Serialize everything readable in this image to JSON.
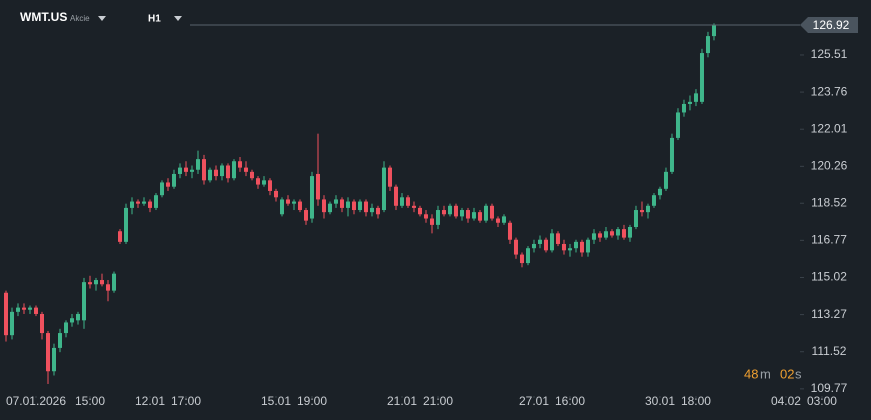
{
  "header": {
    "symbol": "WMT.US",
    "instrument_type": "Akcie",
    "interval": "H1"
  },
  "countdown": {
    "minutes": "48",
    "minutes_unit": "m",
    "seconds": "02",
    "seconds_unit": "s"
  },
  "chart_data": {
    "type": "candlestick",
    "up_color": "#3fb68b",
    "down_color": "#f0515e",
    "last_price": 126.92,
    "ylim": [
      109.48,
      127.63
    ],
    "yticks": [
      109.77,
      111.52,
      113.27,
      115.02,
      116.77,
      118.52,
      120.26,
      122.01,
      123.76,
      125.51
    ],
    "xlim": [
      -1,
      144.17
    ],
    "xticks": [
      {
        "value": 5,
        "label": "07.01.2026"
      },
      {
        "value": 14,
        "label": "15:00"
      },
      {
        "value": 24,
        "label": "12.01"
      },
      {
        "value": 30,
        "label": "17:00"
      },
      {
        "value": 45,
        "label": "15.01"
      },
      {
        "value": 51,
        "label": "19:00"
      },
      {
        "value": 66,
        "label": "21.01"
      },
      {
        "value": 72,
        "label": "21:00"
      },
      {
        "value": 88,
        "label": "27.01"
      },
      {
        "value": 94,
        "label": "16:00"
      },
      {
        "value": 109,
        "label": "30.01"
      },
      {
        "value": 115,
        "label": "18:00"
      },
      {
        "value": 130,
        "label": "04.02"
      },
      {
        "value": 136,
        "label": "03:00"
      }
    ],
    "ohlc": [
      [
        114.3,
        114.4,
        112.0,
        112.3
      ],
      [
        112.3,
        113.6,
        112.1,
        113.4
      ],
      [
        113.4,
        113.8,
        113.2,
        113.6
      ],
      [
        113.6,
        113.8,
        113.3,
        113.5
      ],
      [
        113.5,
        113.7,
        113.3,
        113.6
      ],
      [
        113.6,
        113.7,
        113.2,
        113.3
      ],
      [
        113.3,
        113.4,
        112.1,
        112.4
      ],
      [
        112.4,
        112.5,
        110.0,
        110.6
      ],
      [
        110.6,
        111.9,
        110.4,
        111.7
      ],
      [
        111.7,
        112.6,
        111.5,
        112.4
      ],
      [
        112.4,
        113.0,
        112.2,
        112.9
      ],
      [
        112.9,
        113.3,
        112.7,
        113.1
      ],
      [
        113.0,
        113.4,
        112.8,
        113.3
      ],
      [
        113.0,
        115.0,
        112.6,
        114.8
      ],
      [
        114.8,
        115.1,
        114.5,
        114.7
      ],
      [
        114.7,
        115.0,
        114.4,
        114.9
      ],
      [
        114.9,
        115.2,
        114.6,
        114.7
      ],
      [
        114.7,
        114.9,
        113.9,
        114.4
      ],
      [
        114.4,
        115.3,
        114.3,
        115.2
      ],
      [
        117.2,
        117.3,
        116.6,
        116.7
      ],
      [
        116.7,
        118.5,
        116.6,
        118.3
      ],
      [
        118.3,
        118.8,
        118.0,
        118.6
      ],
      [
        118.6,
        118.7,
        118.3,
        118.5
      ],
      [
        118.5,
        118.8,
        118.4,
        118.6
      ],
      [
        118.6,
        118.7,
        118.1,
        118.3
      ],
      [
        118.3,
        119.0,
        118.2,
        118.9
      ],
      [
        118.9,
        119.6,
        118.8,
        119.5
      ],
      [
        119.5,
        119.7,
        119.1,
        119.3
      ],
      [
        119.3,
        120.1,
        119.2,
        119.9
      ],
      [
        119.9,
        120.4,
        119.7,
        120.2
      ],
      [
        120.2,
        120.5,
        119.8,
        120.0
      ],
      [
        120.0,
        120.3,
        119.7,
        120.1
      ],
      [
        120.1,
        121.0,
        119.9,
        120.6
      ],
      [
        120.6,
        120.8,
        119.4,
        119.6
      ],
      [
        119.6,
        120.2,
        119.5,
        120.1
      ],
      [
        120.1,
        120.3,
        119.6,
        119.8
      ],
      [
        119.8,
        120.4,
        119.6,
        120.3
      ],
      [
        120.3,
        120.4,
        119.5,
        119.7
      ],
      [
        119.7,
        120.6,
        119.6,
        120.5
      ],
      [
        120.5,
        120.7,
        120.0,
        120.2
      ],
      [
        120.2,
        120.5,
        119.8,
        120.0
      ],
      [
        120.0,
        120.1,
        119.6,
        119.7
      ],
      [
        119.7,
        119.8,
        119.2,
        119.4
      ],
      [
        119.4,
        119.8,
        119.3,
        119.6
      ],
      [
        119.6,
        119.7,
        118.9,
        119.1
      ],
      [
        119.1,
        119.2,
        118.6,
        118.8
      ],
      [
        118.0,
        118.8,
        117.9,
        118.7
      ],
      [
        118.7,
        118.9,
        118.4,
        118.5
      ],
      [
        118.5,
        118.7,
        118.2,
        118.6
      ],
      [
        118.6,
        118.7,
        118.1,
        118.2
      ],
      [
        118.2,
        118.3,
        117.5,
        117.7
      ],
      [
        117.8,
        120.0,
        117.6,
        119.8
      ],
      [
        119.9,
        121.8,
        118.4,
        118.7
      ],
      [
        118.7,
        118.9,
        117.8,
        118.1
      ],
      [
        118.1,
        118.6,
        118.0,
        118.5
      ],
      [
        118.5,
        118.9,
        118.3,
        118.7
      ],
      [
        118.7,
        118.8,
        118.1,
        118.3
      ],
      [
        118.3,
        118.8,
        117.9,
        118.6
      ],
      [
        118.6,
        118.7,
        118.0,
        118.2
      ],
      [
        118.2,
        118.7,
        118.1,
        118.6
      ],
      [
        118.6,
        118.7,
        117.9,
        118.1
      ],
      [
        118.1,
        118.5,
        117.9,
        118.3
      ],
      [
        118.3,
        118.4,
        117.8,
        118.0
      ],
      [
        118.2,
        120.5,
        118.1,
        120.2
      ],
      [
        120.2,
        120.3,
        119.1,
        119.3
      ],
      [
        119.3,
        119.4,
        118.2,
        118.4
      ],
      [
        118.4,
        119.0,
        118.3,
        118.8
      ],
      [
        118.8,
        118.9,
        118.3,
        118.4
      ],
      [
        118.4,
        118.6,
        118.1,
        118.3
      ],
      [
        118.3,
        118.4,
        117.9,
        118.0
      ],
      [
        118.0,
        118.2,
        117.6,
        117.8
      ],
      [
        117.8,
        118.0,
        117.1,
        117.5
      ],
      [
        117.5,
        118.4,
        117.3,
        118.2
      ],
      [
        118.2,
        118.4,
        117.9,
        118.0
      ],
      [
        118.0,
        118.5,
        117.9,
        118.4
      ],
      [
        118.4,
        118.5,
        117.8,
        117.9
      ],
      [
        117.9,
        118.3,
        117.7,
        118.2
      ],
      [
        118.2,
        118.3,
        117.6,
        117.8
      ],
      [
        117.8,
        118.3,
        117.7,
        118.1
      ],
      [
        118.1,
        118.2,
        117.6,
        117.7
      ],
      [
        117.7,
        118.5,
        117.6,
        118.4
      ],
      [
        118.4,
        118.5,
        117.7,
        117.8
      ],
      [
        117.8,
        117.9,
        117.4,
        117.6
      ],
      [
        117.6,
        118.0,
        117.5,
        117.9
      ],
      [
        117.6,
        117.7,
        116.6,
        116.8
      ],
      [
        116.8,
        116.9,
        115.9,
        116.1
      ],
      [
        116.1,
        116.2,
        115.5,
        115.7
      ],
      [
        115.7,
        116.5,
        115.6,
        116.4
      ],
      [
        116.4,
        116.8,
        116.2,
        116.6
      ],
      [
        116.6,
        117.0,
        116.4,
        116.8
      ],
      [
        116.8,
        116.9,
        116.2,
        116.3
      ],
      [
        116.3,
        117.3,
        116.2,
        117.1
      ],
      [
        117.1,
        117.2,
        116.5,
        116.6
      ],
      [
        116.6,
        116.8,
        116.1,
        116.3
      ],
      [
        116.3,
        116.6,
        116.0,
        116.4
      ],
      [
        116.4,
        116.8,
        116.2,
        116.7
      ],
      [
        116.7,
        116.8,
        116.0,
        116.2
      ],
      [
        116.2,
        116.9,
        116.0,
        116.8
      ],
      [
        116.8,
        117.3,
        116.6,
        117.1
      ],
      [
        117.1,
        117.2,
        116.7,
        116.9
      ],
      [
        116.9,
        117.4,
        116.8,
        117.2
      ],
      [
        117.2,
        117.3,
        116.9,
        117.0
      ],
      [
        117.0,
        117.4,
        116.8,
        117.3
      ],
      [
        117.3,
        117.5,
        116.8,
        116.9
      ],
      [
        116.9,
        117.5,
        116.7,
        117.4
      ],
      [
        117.4,
        118.4,
        117.3,
        118.2
      ],
      [
        118.2,
        118.6,
        117.9,
        118.1
      ],
      [
        118.1,
        118.5,
        117.8,
        118.4
      ],
      [
        118.4,
        119.0,
        118.3,
        118.9
      ],
      [
        118.9,
        119.3,
        118.7,
        119.2
      ],
      [
        119.2,
        120.2,
        119.1,
        120.0
      ],
      [
        120.0,
        121.8,
        119.9,
        121.6
      ],
      [
        121.6,
        123.0,
        121.5,
        122.8
      ],
      [
        122.8,
        123.4,
        122.6,
        123.2
      ],
      [
        123.2,
        123.6,
        122.9,
        123.3
      ],
      [
        123.3,
        123.9,
        123.1,
        123.7
      ],
      [
        123.3,
        125.8,
        123.2,
        125.6
      ],
      [
        125.6,
        126.6,
        125.4,
        126.4
      ],
      [
        126.4,
        127.0,
        126.2,
        126.92
      ]
    ]
  }
}
